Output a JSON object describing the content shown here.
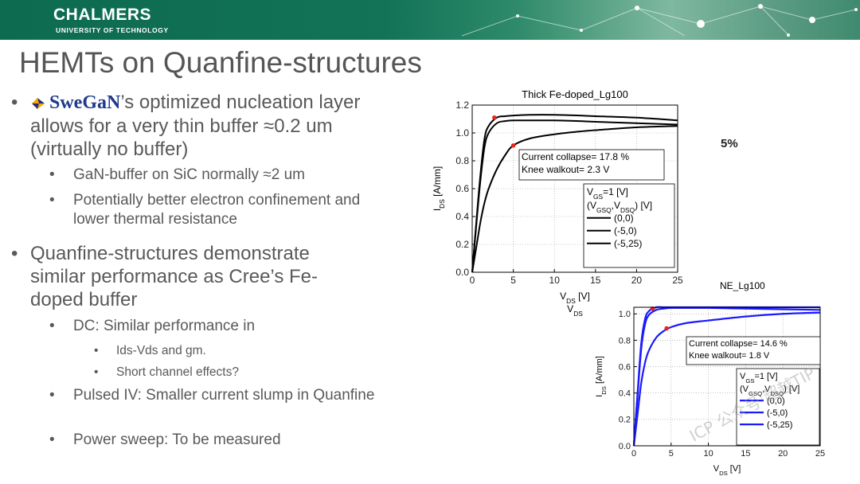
{
  "header": {
    "brand": "CHALMERS",
    "brand_sub": "UNIVERSITY OF TECHNOLOGY"
  },
  "slide_title": "HEMTs on Quanfine-structures",
  "bullets": {
    "b1_logo": "SweGaN",
    "b1_text": "’s optimized nucleation layer allows for a very thin buffer ≈0.2 um (virtually no buffer)",
    "b1_sub1": "GaN-buffer on SiC normally ≈2 um",
    "b1_sub2": "Potentially better electron confinement and lower thermal resistance",
    "b2_text": "Quanfine-structures demonstrate similar performance as Cree’s Fe-doped buffer",
    "b2_sub1": "DC: Similar performance in",
    "b2_sub1_a": "Ids-Vds and gm.",
    "b2_sub1_b": "Short channel effects?",
    "b2_sub2": "Pulsed IV: Smaller current slump in Quanfine",
    "b2_sub3": "Power sweep: To be measured",
    "bullet_char": "•"
  },
  "side_note": "5%",
  "watermark": "ICP 公众号·超越TIP",
  "chart_data": [
    {
      "type": "line",
      "title": "Thick Fe-doped_Lg100",
      "xlabel": "V_DS [V]",
      "xlabel_extra": "V_DS",
      "ylabel": "I_DS [A/mm]",
      "xlim": [
        0,
        25
      ],
      "ylim": [
        0,
        1.2
      ],
      "xticks": [
        0,
        5,
        10,
        15,
        20,
        25
      ],
      "yticks": [
        0.0,
        0.2,
        0.4,
        0.6,
        0.8,
        1.0,
        1.2
      ],
      "grid": true,
      "line_color": "#000000",
      "annotation": [
        "Current collapse= 17.8 %",
        "Knee walkout= 2.3 V"
      ],
      "legend_header": [
        "V_GS=1 [V]",
        "(V_GSQ,V_DSQ) [V]"
      ],
      "legend_placement": "center-right",
      "series": [
        {
          "name": "(0,0)",
          "x": [
            0,
            0.5,
            1,
            1.5,
            2,
            3,
            4,
            5,
            7,
            10,
            13,
            15,
            20,
            25
          ],
          "y": [
            0,
            0.36,
            0.7,
            0.96,
            1.05,
            1.11,
            1.12,
            1.125,
            1.13,
            1.13,
            1.125,
            1.12,
            1.11,
            1.09
          ]
        },
        {
          "name": "(-5,0)",
          "x": [
            0,
            0.5,
            1,
            1.5,
            2,
            3,
            4,
            5,
            7,
            10,
            13,
            15,
            20,
            25
          ],
          "y": [
            0,
            0.34,
            0.66,
            0.9,
            1.0,
            1.07,
            1.085,
            1.09,
            1.09,
            1.09,
            1.085,
            1.08,
            1.07,
            1.06
          ]
        },
        {
          "name": "(-5,25)",
          "x": [
            0,
            0.5,
            1,
            1.5,
            2,
            3,
            4,
            5,
            7,
            10,
            13,
            15,
            20,
            25
          ],
          "y": [
            0,
            0.18,
            0.36,
            0.5,
            0.6,
            0.74,
            0.84,
            0.91,
            0.96,
            0.99,
            1.01,
            1.02,
            1.04,
            1.05
          ]
        }
      ],
      "markers": [
        {
          "x": 2.7,
          "y": 1.11
        },
        {
          "x": 5,
          "y": 0.91
        }
      ],
      "marker_color": "#e8251d"
    },
    {
      "type": "line",
      "title": "NE_Lg100",
      "xlabel": "V_DS [V]",
      "ylabel": "I_DS [A/mm]",
      "xlim": [
        0,
        25
      ],
      "ylim": [
        0,
        1.05
      ],
      "xticks": [
        0,
        5,
        10,
        15,
        20,
        25
      ],
      "yticks": [
        0.0,
        0.2,
        0.4,
        0.6,
        0.8,
        1.0
      ],
      "grid": true,
      "line_color": "#1a1aff",
      "annotation": [
        "Current collapse= 14.6 %",
        "Knee walkout= 1.8 V"
      ],
      "legend_header": [
        "V_GS=1 [V]",
        "(V_GSQ,V_DSQ) [V]"
      ],
      "legend_placement": "center-right",
      "series": [
        {
          "name": "(0,0)",
          "x": [
            0,
            0.5,
            1,
            1.5,
            2,
            3,
            4,
            5,
            7,
            10,
            15,
            20,
            25
          ],
          "y": [
            0,
            0.4,
            0.78,
            0.96,
            1.02,
            1.06,
            1.07,
            1.07,
            1.07,
            1.07,
            1.065,
            1.06,
            1.05
          ]
        },
        {
          "name": "(-5,0)",
          "x": [
            0,
            0.5,
            1,
            1.5,
            2,
            3,
            4,
            5,
            7,
            10,
            15,
            20,
            25
          ],
          "y": [
            0,
            0.38,
            0.74,
            0.92,
            0.99,
            1.03,
            1.04,
            1.045,
            1.045,
            1.045,
            1.04,
            1.035,
            1.03
          ]
        },
        {
          "name": "(-5,25)",
          "x": [
            0,
            0.5,
            1,
            1.5,
            2,
            3,
            4,
            5,
            7,
            10,
            15,
            20,
            25
          ],
          "y": [
            0,
            0.24,
            0.48,
            0.63,
            0.72,
            0.82,
            0.87,
            0.9,
            0.93,
            0.95,
            0.98,
            1.0,
            1.01
          ]
        }
      ],
      "markers": [
        {
          "x": 2.5,
          "y": 1.04
        },
        {
          "x": 4.4,
          "y": 0.89
        }
      ],
      "marker_color": "#e8251d"
    }
  ]
}
